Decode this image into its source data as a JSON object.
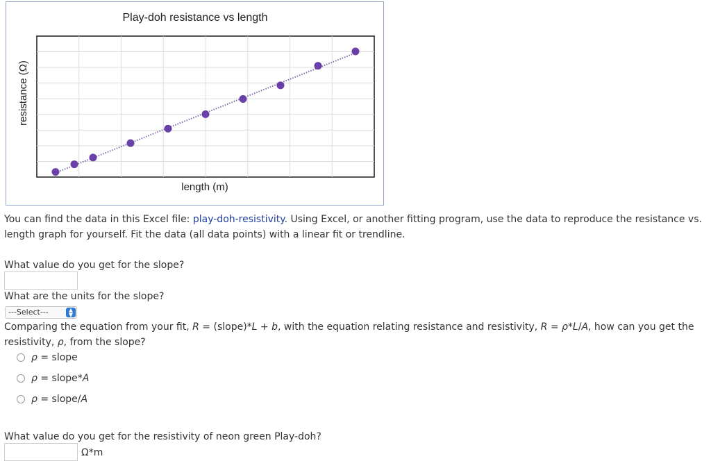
{
  "chart_data": {
    "type": "scatter",
    "title": "Play-doh resistance vs length",
    "xlabel": "length (m)",
    "ylabel": "resistance (Ω)",
    "trendline": "linear, dotted",
    "grid": true,
    "marker_color": "#6a3fa8",
    "points": [
      {
        "x": 0.0,
        "y": 0.0
      },
      {
        "x": 0.05,
        "y": 0.45
      },
      {
        "x": 0.1,
        "y": 0.85
      },
      {
        "x": 0.2,
        "y": 1.7
      },
      {
        "x": 0.3,
        "y": 2.55
      },
      {
        "x": 0.4,
        "y": 3.4
      },
      {
        "x": 0.5,
        "y": 4.3
      },
      {
        "x": 0.6,
        "y": 5.1
      },
      {
        "x": 0.7,
        "y": 6.25
      },
      {
        "x": 0.8,
        "y": 7.1
      }
    ],
    "xlim": [
      -0.05,
      0.85
    ],
    "ylim": [
      -0.3,
      8.0
    ]
  },
  "intro": {
    "text_before_link": "You can find the data in this Excel file: ",
    "link_text": "play-doh-resistivity",
    "text_after_link": ". Using Excel, or another fitting program, use the data to reproduce the resistance vs. length graph for yourself. Fit the data (all data points) with a linear fit or trendline."
  },
  "q1": {
    "prompt": "What value do you get for the slope?",
    "value": ""
  },
  "q2": {
    "prompt": "What are the units for the slope?",
    "selected": "---Select---"
  },
  "q3": {
    "prompt_parts": {
      "a": "Comparing the equation from your fit, ",
      "b": "R",
      "c": " = (slope)*",
      "d": "L",
      "e": " + ",
      "f": "b",
      "g": ", with the equation relating resistance and resistivity, ",
      "h": "R",
      "i": " = ",
      "j": "ρ",
      "k": "*",
      "l": "L",
      "m": "/",
      "n": "A",
      "o": ", how can you get the resistivity, ",
      "p": "ρ",
      "q": ", from the slope?"
    },
    "options": [
      {
        "rho": "ρ",
        "rest": " = slope",
        "var": ""
      },
      {
        "rho": "ρ",
        "rest": " = slope*",
        "var": "A"
      },
      {
        "rho": "ρ",
        "rest": " = slope/",
        "var": "A"
      }
    ]
  },
  "q4": {
    "prompt": "What value do you get for the resistivity of neon green Play-doh?",
    "value": "",
    "units": "Ω*m"
  }
}
